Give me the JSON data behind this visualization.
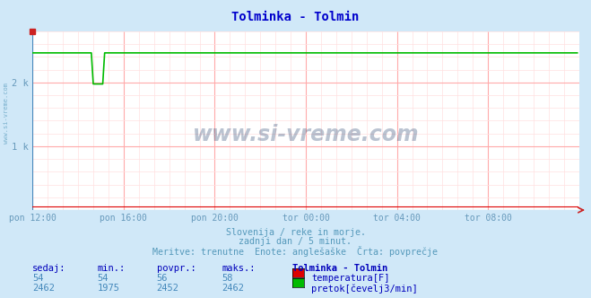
{
  "title": "Tolminka - Tolmin",
  "title_color": "#0000cc",
  "bg_color": "#d0e8f8",
  "plot_bg_color": "#ffffff",
  "grid_color_major": "#ffaaaa",
  "grid_color_minor": "#ffe0e0",
  "axis_color": "#6699bb",
  "xtick_labels": [
    "pon 12:00",
    "pon 16:00",
    "pon 20:00",
    "tor 00:00",
    "tor 04:00",
    "tor 08:00"
  ],
  "xtick_positions": [
    0,
    48,
    96,
    144,
    192,
    240
  ],
  "ytick_labels": [
    "1 k",
    "2 k"
  ],
  "ytick_positions": [
    1000,
    2000
  ],
  "xlim": [
    0,
    288
  ],
  "ylim": [
    0,
    2800
  ],
  "temp_color": "#dd0000",
  "flow_color": "#00bb00",
  "temp_current": 54,
  "temp_min": 54,
  "temp_avg": 56,
  "temp_max": 58,
  "flow_current": 2462,
  "flow_min": 1975,
  "flow_avg": 2452,
  "flow_max": 2462,
  "n_points": 288,
  "drop_start": 32,
  "drop_end": 38,
  "drop_bottom": 1975,
  "flow_base": 2462,
  "watermark": "www.si-vreme.com",
  "subtitle1": "Slovenija / reke in morje.",
  "subtitle2": "zadnji dan / 5 minut.",
  "subtitle3": "Meritve: trenutne  Enote: anglešaške  Črta: povprečje",
  "footer_col1_label": "sedaj:",
  "footer_col2_label": "min.:",
  "footer_col3_label": "povpr.:",
  "footer_col4_label": "maks.:",
  "footer_col5_label": "Tolminka - Tolmin",
  "legend1_label": "temperatura[F]",
  "legend2_label": "pretok[čevelj3/min]",
  "left_label": "www.si-vreme.com"
}
